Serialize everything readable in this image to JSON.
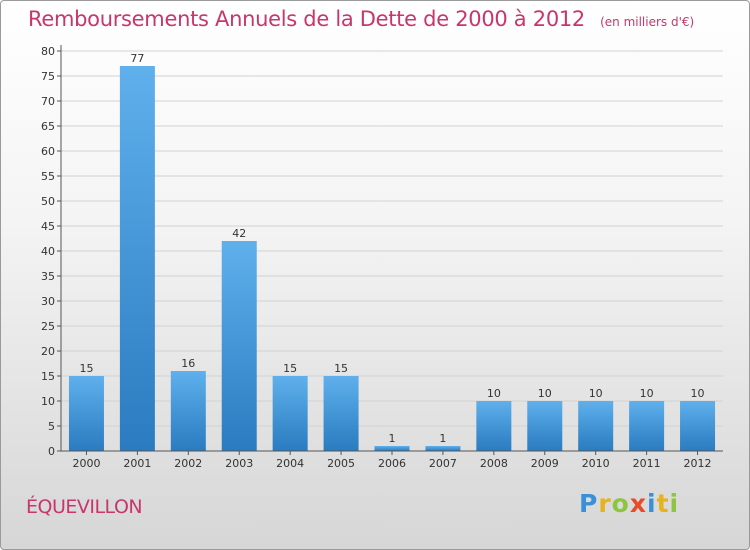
{
  "chart_data": {
    "type": "bar",
    "title": "Remboursements Annuels de la Dette de 2000 à 2012",
    "subtitle": "(en milliers d'€)",
    "categories": [
      "2000",
      "2001",
      "2002",
      "2003",
      "2004",
      "2005",
      "2006",
      "2007",
      "2008",
      "2009",
      "2010",
      "2011",
      "2012"
    ],
    "values": [
      15,
      77,
      16,
      42,
      15,
      15,
      1,
      1,
      10,
      10,
      10,
      10,
      10
    ],
    "ylim": [
      0,
      80
    ],
    "yticks": [
      0,
      5,
      10,
      15,
      20,
      25,
      30,
      35,
      40,
      45,
      50,
      55,
      60,
      65,
      70,
      75,
      80
    ],
    "xlabel": "",
    "ylabel": "",
    "grid": true,
    "colors": {
      "bar_light": "#5fb0ec",
      "bar_dark": "#2a7bc0",
      "title": "#c8366b"
    }
  },
  "footer": {
    "commune": "ÉQUEVILLON",
    "logo": "Proxiti"
  }
}
